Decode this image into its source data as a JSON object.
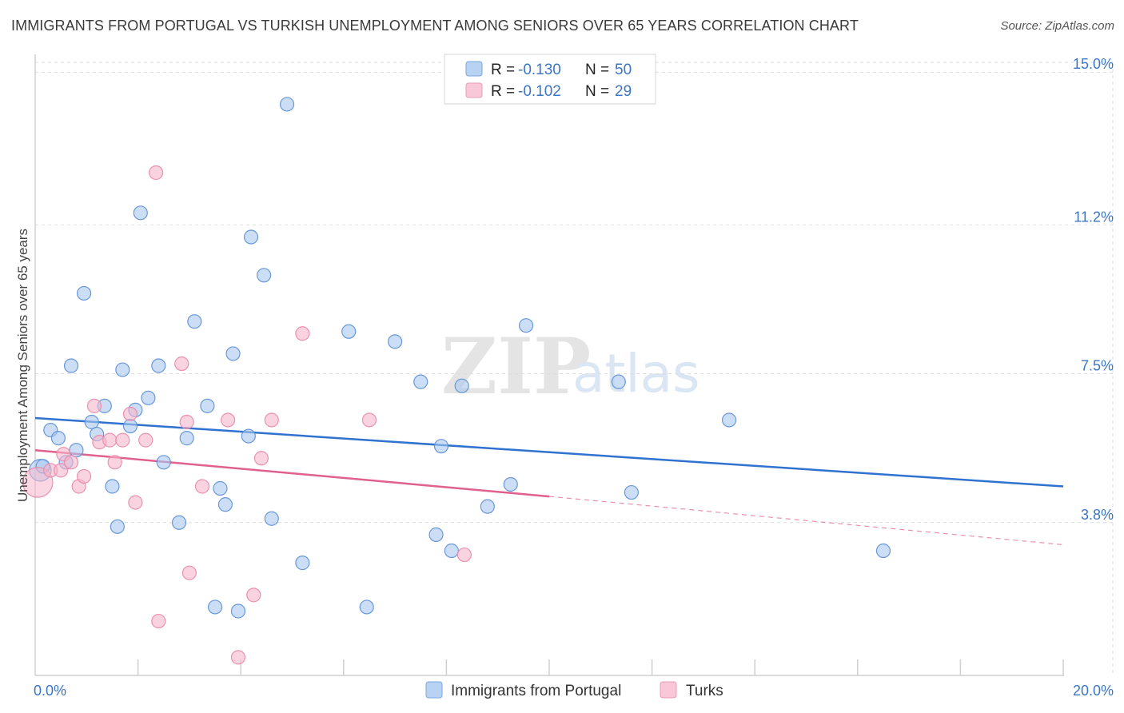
{
  "header": {
    "title": "IMMIGRANTS FROM PORTUGAL VS TURKISH UNEMPLOYMENT AMONG SENIORS OVER 65 YEARS CORRELATION CHART",
    "source": "Source: ZipAtlas.com"
  },
  "watermark": {
    "zip": "ZIP",
    "atlas": "atlas"
  },
  "stats_legend": {
    "rows": [
      {
        "series": "Immigrants from Portugal",
        "r_label": "R =",
        "r_value": "-0.130",
        "n_label": "N =",
        "n_value": "50",
        "color": "#a9c8f0"
      },
      {
        "series": "Turks",
        "r_label": "R =",
        "r_value": "-0.102",
        "n_label": "N =",
        "n_value": "29",
        "color": "#f6b6cb"
      }
    ]
  },
  "chart_data": {
    "type": "scatter",
    "title": "IMMIGRANTS FROM PORTUGAL VS TURKISH UNEMPLOYMENT AMONG SENIORS OVER 65 YEARS CORRELATION CHART",
    "xlabel": "",
    "ylabel": "Unemployment Among Seniors over 65 years",
    "xlim": [
      0,
      20
    ],
    "ylim": [
      0,
      15.6
    ],
    "x_tick_labels": [
      {
        "value": 0,
        "label": "0.0%"
      },
      {
        "value": 20,
        "label": "20.0%"
      }
    ],
    "y_tick_labels": [
      {
        "value": 3.8,
        "label": "3.8%"
      },
      {
        "value": 7.5,
        "label": "7.5%"
      },
      {
        "value": 11.2,
        "label": "11.2%"
      },
      {
        "value": 15.0,
        "label": "15.0%"
      }
    ],
    "x_minor_ticks": [
      2,
      4,
      6,
      8,
      10,
      12,
      14,
      16,
      18,
      20
    ],
    "grid": true,
    "legend_position": "bottom-center",
    "series": [
      {
        "name": "Immigrants from Portugal",
        "color": "#a9c8f0",
        "stroke": "#5b8fd6",
        "trend_color": "#2f72d0",
        "trend": {
          "x0": 0,
          "y0": 6.4,
          "x1": 20,
          "y1": 4.7
        },
        "points": [
          [
            0.1,
            5.1,
            1.6
          ],
          [
            0.15,
            5.2,
            1
          ],
          [
            0.3,
            6.1,
            1
          ],
          [
            0.45,
            5.9,
            1
          ],
          [
            0.6,
            5.3,
            1
          ],
          [
            0.8,
            5.6,
            1
          ],
          [
            0.7,
            7.7,
            1
          ],
          [
            0.95,
            9.5,
            1
          ],
          [
            1.1,
            6.3,
            1
          ],
          [
            1.2,
            6.0,
            1
          ],
          [
            1.35,
            6.7,
            1
          ],
          [
            1.5,
            4.7,
            1
          ],
          [
            1.6,
            3.7,
            1
          ],
          [
            1.7,
            7.6,
            1
          ],
          [
            1.85,
            6.2,
            1
          ],
          [
            1.95,
            6.6,
            1
          ],
          [
            2.05,
            11.5,
            1
          ],
          [
            2.2,
            6.9,
            1
          ],
          [
            2.4,
            7.7,
            1
          ],
          [
            2.5,
            5.3,
            1
          ],
          [
            2.8,
            3.8,
            1
          ],
          [
            2.95,
            5.9,
            1
          ],
          [
            3.1,
            8.8,
            1
          ],
          [
            3.35,
            6.7,
            1
          ],
          [
            3.5,
            1.7,
            1
          ],
          [
            3.6,
            4.65,
            1
          ],
          [
            3.7,
            4.25,
            1
          ],
          [
            3.85,
            8.0,
            1
          ],
          [
            3.95,
            1.6,
            1
          ],
          [
            4.15,
            5.95,
            1
          ],
          [
            4.2,
            10.9,
            1
          ],
          [
            4.45,
            9.95,
            1
          ],
          [
            4.6,
            3.9,
            1
          ],
          [
            4.9,
            14.2,
            1
          ],
          [
            5.2,
            2.8,
            1
          ],
          [
            6.1,
            8.55,
            1
          ],
          [
            6.45,
            1.7,
            1
          ],
          [
            7.0,
            8.3,
            1
          ],
          [
            7.5,
            7.3,
            1
          ],
          [
            7.8,
            3.5,
            1
          ],
          [
            7.9,
            5.7,
            1
          ],
          [
            8.1,
            3.1,
            1
          ],
          [
            8.3,
            7.2,
            1
          ],
          [
            8.8,
            4.2,
            1
          ],
          [
            9.25,
            4.75,
            1
          ],
          [
            9.55,
            8.7,
            1
          ],
          [
            11.35,
            7.3,
            1
          ],
          [
            11.6,
            4.55,
            1
          ],
          [
            13.5,
            6.35,
            1
          ],
          [
            16.5,
            3.1,
            1
          ]
        ]
      },
      {
        "name": "Turks",
        "color": "#f6b6cb",
        "stroke": "#e888a8",
        "trend_color": "#e0608e",
        "trend": {
          "x0": 0,
          "y0": 5.6,
          "x1": 10,
          "y1": 4.45
        },
        "trend_dashed_extension": {
          "x0": 10,
          "y0": 4.45,
          "x1": 20,
          "y1": 3.25
        },
        "points": [
          [
            0.05,
            4.8,
            2.2
          ],
          [
            0.3,
            5.1,
            1
          ],
          [
            0.5,
            5.1,
            1
          ],
          [
            0.55,
            5.5,
            1
          ],
          [
            0.7,
            5.3,
            1
          ],
          [
            0.85,
            4.7,
            1
          ],
          [
            0.95,
            4.95,
            1
          ],
          [
            1.15,
            6.7,
            1
          ],
          [
            1.25,
            5.8,
            1
          ],
          [
            1.45,
            5.85,
            1
          ],
          [
            1.55,
            5.3,
            1
          ],
          [
            1.7,
            5.85,
            1
          ],
          [
            1.85,
            6.5,
            1
          ],
          [
            1.95,
            4.3,
            1
          ],
          [
            2.15,
            5.85,
            1
          ],
          [
            2.35,
            12.5,
            1
          ],
          [
            2.4,
            1.35,
            1
          ],
          [
            2.85,
            7.75,
            1
          ],
          [
            2.95,
            6.3,
            1
          ],
          [
            3.0,
            2.55,
            1
          ],
          [
            3.25,
            4.7,
            1
          ],
          [
            3.75,
            6.35,
            1
          ],
          [
            3.95,
            0.45,
            1
          ],
          [
            4.25,
            2.0,
            1
          ],
          [
            4.4,
            5.4,
            1
          ],
          [
            4.6,
            6.35,
            1
          ],
          [
            5.2,
            8.5,
            1
          ],
          [
            6.5,
            6.35,
            1
          ],
          [
            8.35,
            3.0,
            1
          ]
        ]
      }
    ]
  }
}
